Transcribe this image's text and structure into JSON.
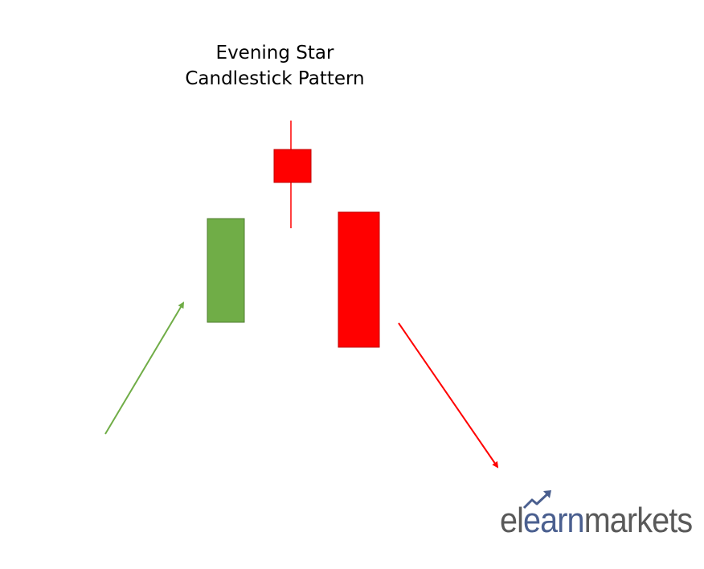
{
  "title": {
    "line1": "Evening Star",
    "line2": "Candlestick Pattern"
  },
  "candles": [
    {
      "name": "bullish-candle",
      "trend": "bullish",
      "color": "#70ad47",
      "border": "#507e32",
      "has_wick": false
    },
    {
      "name": "star-candle",
      "trend": "bearish",
      "color": "#ff0000",
      "border": "#c00000",
      "has_wick": true
    },
    {
      "name": "bearish-candle",
      "trend": "bearish",
      "color": "#ff0000",
      "border": "#c00000",
      "has_wick": false
    }
  ],
  "arrows": [
    {
      "name": "uptrend-arrow",
      "direction": "up",
      "color": "#70ad47"
    },
    {
      "name": "downtrend-arrow",
      "direction": "down",
      "color": "#ff0000"
    }
  ],
  "logo": {
    "part1": "el",
    "part2": "earn",
    "part3": "markets",
    "icon": "trend-up-arrow-icon",
    "colors": {
      "gray": "#595959",
      "blue": "#4a5f8f"
    }
  }
}
